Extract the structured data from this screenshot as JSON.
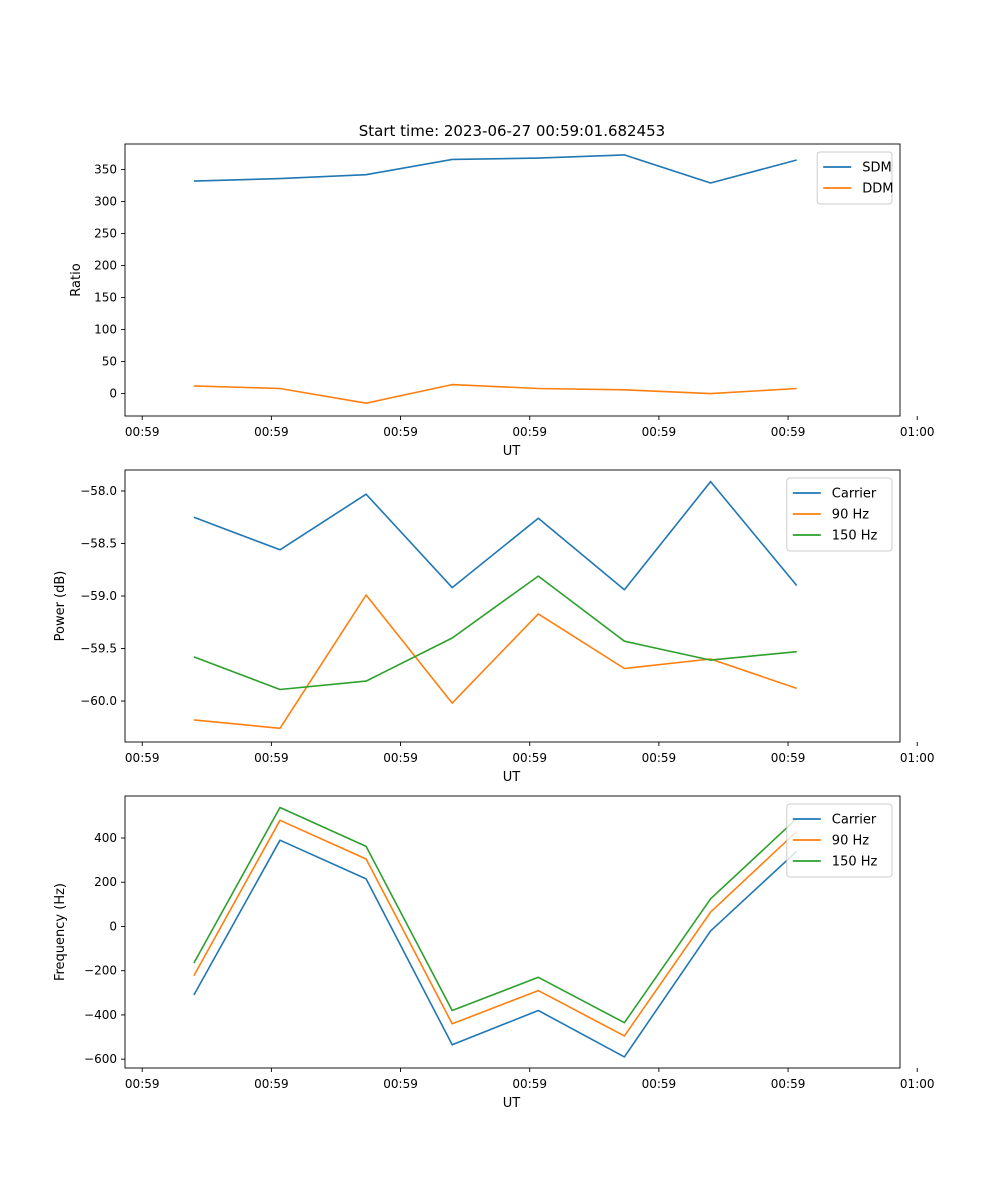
{
  "figure": {
    "title": "Start time: 2023-06-27 00:59:01.682453"
  },
  "colors": {
    "blue": "#1f77b4",
    "orange": "#ff7f0e",
    "green": "#2ca02c"
  },
  "chart_data": [
    {
      "type": "line",
      "title": "Start time: 2023-06-27 00:59:01.682453",
      "xlabel": "UT",
      "ylabel": "Ratio",
      "x_tick_labels": [
        "00:59",
        "00:59",
        "00:59",
        "00:59",
        "00:59",
        "00:59",
        "01:00"
      ],
      "x": [
        1,
        2,
        3,
        4,
        5,
        6,
        7,
        8
      ],
      "xlim": [
        0.2,
        9.2
      ],
      "xticks": [
        0.4,
        1.9,
        3.4,
        4.9,
        6.4,
        7.9,
        9.4
      ],
      "ylim": [
        -35,
        390
      ],
      "yticks": [
        0,
        50,
        100,
        150,
        200,
        250,
        300,
        350
      ],
      "y_tick_labels": [
        "0",
        "50",
        "100",
        "150",
        "200",
        "250",
        "300",
        "350"
      ],
      "legend": "top-right",
      "grid": false,
      "series": [
        {
          "name": "SDM",
          "color": "#1f77b4",
          "values": [
            332,
            336,
            342,
            366,
            368,
            373,
            329,
            365
          ]
        },
        {
          "name": "DDM",
          "color": "#ff7f0e",
          "values": [
            12,
            8,
            -15,
            14,
            8,
            6,
            0,
            8
          ]
        }
      ]
    },
    {
      "type": "line",
      "title": "",
      "xlabel": "UT",
      "ylabel": "Power (dB)",
      "x_tick_labels": [
        "00:59",
        "00:59",
        "00:59",
        "00:59",
        "00:59",
        "00:59",
        "01:00"
      ],
      "x": [
        1,
        2,
        3,
        4,
        5,
        6,
        7,
        8
      ],
      "xlim": [
        0.2,
        9.2
      ],
      "xticks": [
        0.4,
        1.9,
        3.4,
        4.9,
        6.4,
        7.9,
        9.4
      ],
      "ylim": [
        -60.39,
        -57.8
      ],
      "yticks": [
        -60.0,
        -59.5,
        -59.0,
        -58.5,
        -58.0
      ],
      "y_tick_labels": [
        "−60.0",
        "−59.5",
        "−59.0",
        "−58.5",
        "−58.0"
      ],
      "legend": "top-right",
      "grid": false,
      "series": [
        {
          "name": "Carrier",
          "color": "#1f77b4",
          "values": [
            -58.25,
            -58.56,
            -58.03,
            -58.92,
            -58.26,
            -58.94,
            -57.91,
            -58.9
          ]
        },
        {
          "name": "90 Hz",
          "color": "#ff7f0e",
          "values": [
            -60.18,
            -60.26,
            -58.99,
            -60.02,
            -59.17,
            -59.69,
            -59.6,
            -59.88
          ]
        },
        {
          "name": "150 Hz",
          "color": "#2ca02c",
          "values": [
            -59.58,
            -59.89,
            -59.81,
            -59.4,
            -58.81,
            -59.43,
            -59.61,
            -59.53
          ]
        }
      ]
    },
    {
      "type": "line",
      "title": "",
      "xlabel": "UT",
      "ylabel": "Frequency (Hz)",
      "x_tick_labels": [
        "00:59",
        "00:59",
        "00:59",
        "00:59",
        "00:59",
        "00:59",
        "01:00"
      ],
      "x": [
        1,
        2,
        3,
        4,
        5,
        6,
        7,
        8
      ],
      "xlim": [
        0.2,
        9.2
      ],
      "xticks": [
        0.4,
        1.9,
        3.4,
        4.9,
        6.4,
        7.9,
        9.4
      ],
      "ylim": [
        -640,
        590
      ],
      "yticks": [
        -600,
        -400,
        -200,
        0,
        200,
        400
      ],
      "y_tick_labels": [
        "−600",
        "−400",
        "−200",
        "0",
        "200",
        "400"
      ],
      "legend": "top-right",
      "grid": false,
      "series": [
        {
          "name": "Carrier",
          "color": "#1f77b4",
          "values": [
            -310,
            390,
            215,
            -535,
            -380,
            -590,
            -20,
            340
          ]
        },
        {
          "name": "90 Hz",
          "color": "#ff7f0e",
          "values": [
            -222,
            480,
            305,
            -440,
            -290,
            -495,
            65,
            430
          ]
        },
        {
          "name": "150 Hz",
          "color": "#2ca02c",
          "values": [
            -165,
            538,
            362,
            -380,
            -230,
            -435,
            125,
            488
          ]
        }
      ]
    }
  ]
}
